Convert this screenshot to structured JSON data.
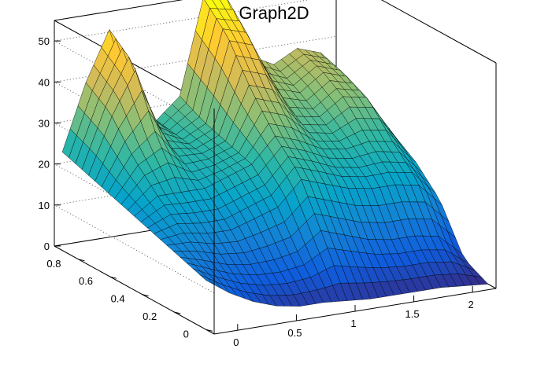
{
  "chart_data": {
    "type": "surface",
    "title": "Graph2D",
    "xlabel": "",
    "ylabel": "",
    "zlabel": "",
    "xlim": [
      -0.2,
      2.2
    ],
    "ylim": [
      -0.05,
      0.95
    ],
    "zlim": [
      0,
      55
    ],
    "x_ticks": [
      "0",
      "0.5",
      "1",
      "1.5",
      "2"
    ],
    "x_tick_values": [
      0,
      0.5,
      1,
      1.5,
      2
    ],
    "y_ticks": [
      "0",
      "0.2",
      "0.4",
      "0.6",
      "0.8"
    ],
    "y_tick_values": [
      0,
      0.2,
      0.4,
      0.6,
      0.8
    ],
    "z_ticks": [
      "0",
      "10",
      "20",
      "30",
      "40",
      "50"
    ],
    "z_tick_values": [
      0,
      10,
      20,
      30,
      40,
      50
    ],
    "grid": true,
    "colormap": "parula",
    "colors": [
      "#352a87",
      "#0f5cdd",
      "#1481d6",
      "#06a4ca",
      "#2eb7a4",
      "#87bf77",
      "#d1bb59",
      "#fec832",
      "#f9fb0e"
    ],
    "surface_x": [
      -0.2,
      0.0,
      0.2,
      0.4,
      0.6,
      0.8,
      1.0,
      1.2,
      1.4,
      1.6,
      1.8,
      2.0,
      2.2
    ],
    "surface_y": [
      0.0,
      0.15,
      0.3,
      0.45,
      0.6,
      0.75,
      0.9
    ],
    "surface_z": [
      [
        12,
        8,
        5,
        3,
        2,
        2,
        1.5,
        1,
        1,
        1,
        1,
        0.5,
        0
      ],
      [
        14,
        12,
        10,
        9,
        9,
        10,
        14,
        12,
        10,
        9,
        9,
        8,
        3
      ],
      [
        16,
        17,
        16,
        16,
        18,
        20,
        26,
        24,
        22,
        21,
        21,
        20,
        14
      ],
      [
        18,
        22,
        22,
        22,
        24,
        26,
        32,
        30,
        27,
        26,
        27,
        26,
        20
      ],
      [
        20,
        28,
        32,
        26,
        26,
        28,
        40,
        38,
        31,
        30,
        34,
        33,
        24
      ],
      [
        22,
        36,
        47,
        30,
        27,
        30,
        50,
        48,
        36,
        34,
        38,
        36,
        26
      ],
      [
        24,
        40,
        52,
        34,
        28,
        33,
        56,
        55,
        40,
        37,
        40,
        38,
        28
      ]
    ]
  }
}
